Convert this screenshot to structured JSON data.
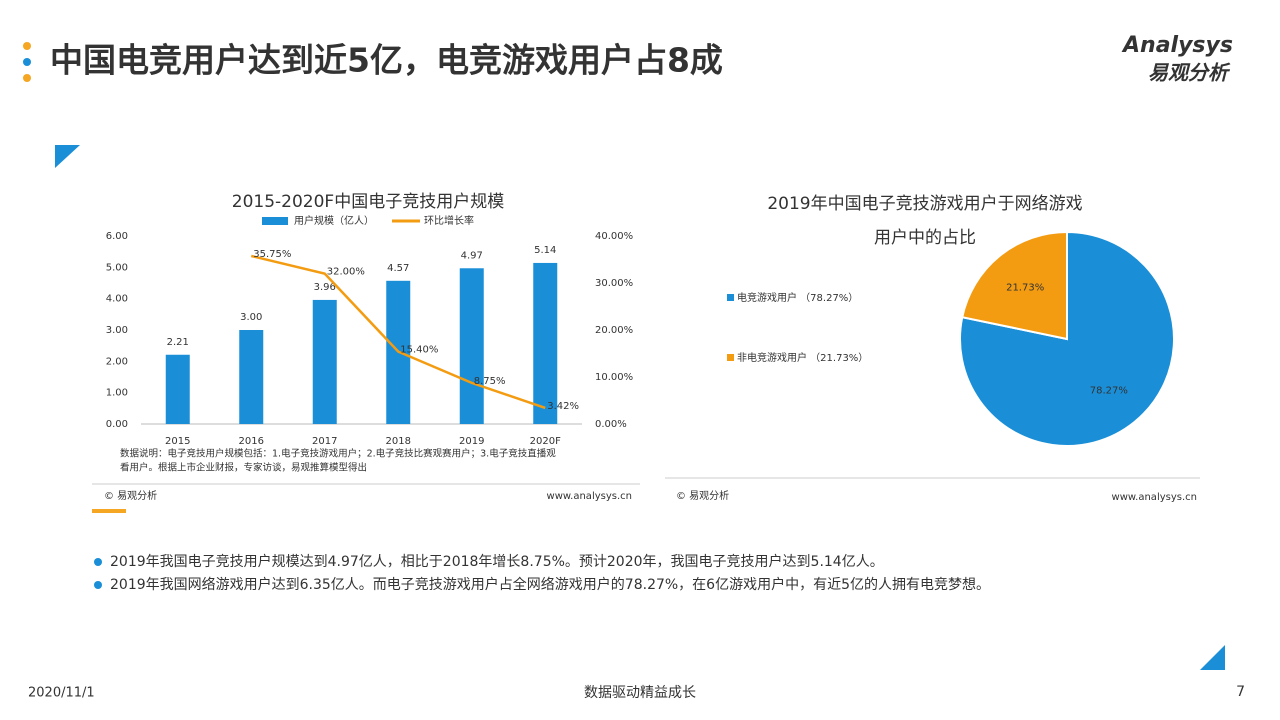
{
  "header": {
    "title": "中国电竞用户达到近5亿，电竞游戏用户占8成",
    "logo": "Analysys",
    "logo_sub": "易观分析"
  },
  "chart_data": [
    {
      "type": "bar",
      "title": "2015-2020F中国电子竞技用户规模",
      "categories": [
        "2015",
        "2016",
        "2017",
        "2018",
        "2019",
        "2020F"
      ],
      "series": [
        {
          "name": "用户规模（亿人）",
          "type": "bar",
          "color": "#1a8fd8",
          "values": [
            2.21,
            3.0,
            3.96,
            4.57,
            4.97,
            5.14
          ],
          "value_labels": [
            "2.21",
            "3.00",
            "3.96",
            "4.57",
            "4.97",
            "5.14"
          ]
        },
        {
          "name": "环比增长率",
          "type": "line",
          "axis": "y2",
          "color": "#f39c12",
          "values": [
            null,
            35.75,
            32.0,
            15.4,
            8.75,
            3.42
          ],
          "value_labels": [
            null,
            "35.75%",
            "32.00%",
            "15.40%",
            "8.75%",
            "3.42%"
          ]
        }
      ],
      "ylim": [
        0,
        6
      ],
      "yticks": [
        {
          "value": 0,
          "label": "0.00"
        },
        {
          "value": 1,
          "label": "1.00"
        },
        {
          "value": 2,
          "label": "2.00"
        },
        {
          "value": 3,
          "label": "3.00"
        },
        {
          "value": 4,
          "label": "4.00"
        },
        {
          "value": 5,
          "label": "5.00"
        },
        {
          "value": 6,
          "label": "6.00"
        }
      ],
      "y2lim": [
        0,
        40
      ],
      "y2ticks": [
        {
          "value": 0,
          "label": "0.00%"
        },
        {
          "value": 10,
          "label": "10.00%"
        },
        {
          "value": 20,
          "label": "20.00%"
        },
        {
          "value": 30,
          "label": "30.00%"
        },
        {
          "value": 40,
          "label": "40.00%"
        }
      ],
      "note": [
        "数据说明：电子竞技用户规模包括：1.电子竞技游戏用户；2.电子竞技比赛观赛用户；3.电子竞技直播观",
        "看用户。根据上市企业财报，专家访谈，易观推算模型得出"
      ],
      "source": "© 易观分析",
      "url": "www.analysys.cn"
    },
    {
      "type": "pie",
      "title": [
        "2019年中国电子竞技游戏用户于网络游戏",
        "用户中的占比"
      ],
      "categories": [
        "电竞游戏用户 （78.27%）",
        "非电竞游戏用户 （21.73%）"
      ],
      "values": [
        78.27,
        21.73
      ],
      "value_labels": [
        "78.27%",
        "21.73%"
      ],
      "colors": [
        "#1a8fd8",
        "#f39c12"
      ],
      "source": "© 易观分析",
      "url": "www.analysys.cn"
    }
  ],
  "bullets": [
    "2019年我国电子竞技用户规模达到4.97亿人，相比于2018年增长8.75%。预计2020年，我国电子竞技用户达到5.14亿人。",
    "2019年我国网络游戏用户达到6.35亿人。而电子竞技游戏用户占全网络游戏用户的78.27%，在6亿游戏用户中，有近5亿的人拥有电竞梦想。"
  ],
  "footer": {
    "date": "2020/11/1",
    "slogan": "数据驱动精益成长",
    "page": 7
  }
}
